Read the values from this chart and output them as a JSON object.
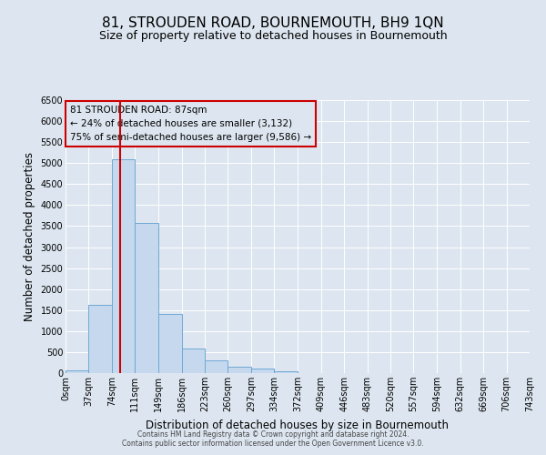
{
  "title": "81, STROUDEN ROAD, BOURNEMOUTH, BH9 1QN",
  "subtitle": "Size of property relative to detached houses in Bournemouth",
  "xlabel": "Distribution of detached houses by size in Bournemouth",
  "ylabel": "Number of detached properties",
  "bar_values": [
    75,
    1620,
    5100,
    3580,
    1400,
    580,
    300,
    150,
    100,
    50,
    0,
    0,
    0,
    0,
    0,
    0,
    0,
    0,
    0,
    0
  ],
  "bin_edges": [
    0,
    37,
    74,
    111,
    149,
    186,
    223,
    260,
    297,
    334,
    372,
    409,
    446,
    483,
    520,
    557,
    594,
    632,
    669,
    706,
    743
  ],
  "bar_color": "#c5d8ee",
  "bar_edge_color": "#6fa8d4",
  "bar_edge_width": 0.7,
  "property_size": 87,
  "red_line_color": "#cc0000",
  "ylim": [
    0,
    6500
  ],
  "yticks": [
    0,
    500,
    1000,
    1500,
    2000,
    2500,
    3000,
    3500,
    4000,
    4500,
    5000,
    5500,
    6000,
    6500
  ],
  "annotation_title": "81 STROUDEN ROAD: 87sqm",
  "annotation_line1": "← 24% of detached houses are smaller (3,132)",
  "annotation_line2": "75% of semi-detached houses are larger (9,586) →",
  "annotation_box_color": "#cc0000",
  "background_color": "#dde6f0",
  "plot_bg_color": "#dde6f0",
  "footer_line1": "Contains HM Land Registry data © Crown copyright and database right 2024.",
  "footer_line2": "Contains public sector information licensed under the Open Government Licence v3.0.",
  "title_fontsize": 11,
  "subtitle_fontsize": 9,
  "tick_label_fontsize": 7,
  "ylabel_fontsize": 8.5,
  "xlabel_fontsize": 8.5,
  "annotation_fontsize": 7.5,
  "footer_fontsize": 5.5
}
